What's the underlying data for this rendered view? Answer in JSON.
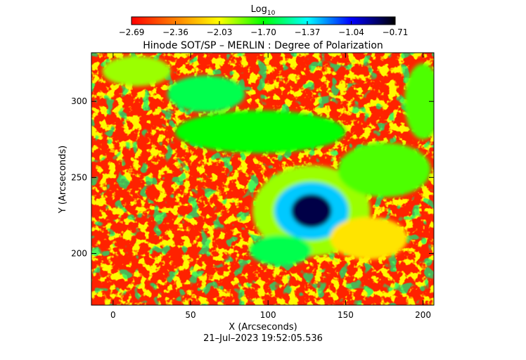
{
  "chart_data": {
    "type": "heatmap",
    "title": "Hinode SOT/SP – MERLIN : Degree of Polarization",
    "xlabel": "X (Arcseconds)",
    "ylabel": "Y (Arcseconds)",
    "timestamp": "21–Jul–2023 19:52:05.536",
    "xlim": [
      -14,
      207
    ],
    "ylim": [
      166,
      332
    ],
    "x_ticks": [
      0,
      50,
      100,
      150,
      200
    ],
    "x_tick_labels": [
      "0",
      "50",
      "100",
      "150",
      "200"
    ],
    "y_ticks": [
      200,
      250,
      300
    ],
    "y_tick_labels": [
      "200",
      "250",
      "300"
    ],
    "colorbar": {
      "label_base": "Log",
      "label_sub": "10",
      "range": [
        -2.69,
        -0.71
      ],
      "ticks": [
        -2.69,
        -2.36,
        -2.03,
        -1.7,
        -1.37,
        -1.04,
        -0.71
      ],
      "tick_labels": [
        "−2.69",
        "−2.36",
        "−2.03",
        "−1.70",
        "−1.37",
        "−1.04",
        "−0.71"
      ],
      "colormap": [
        "#ff0000",
        "#ff8000",
        "#ffff00",
        "#00ff00",
        "#00ffff",
        "#0000ff",
        "#000000"
      ]
    },
    "features": [
      {
        "x": 128,
        "y": 228,
        "rx": 13,
        "ry": 11,
        "value": -0.8
      },
      {
        "x": 128,
        "y": 228,
        "rx": 24,
        "ry": 19,
        "value": -1.3
      },
      {
        "x": 128,
        "y": 228,
        "rx": 38,
        "ry": 30,
        "value": -1.9
      },
      {
        "x": 95,
        "y": 280,
        "rx": 55,
        "ry": 14,
        "value": -1.7
      },
      {
        "x": 60,
        "y": 305,
        "rx": 25,
        "ry": 12,
        "value": -1.6
      },
      {
        "x": 175,
        "y": 255,
        "rx": 30,
        "ry": 18,
        "value": -1.8
      },
      {
        "x": 15,
        "y": 320,
        "rx": 22,
        "ry": 10,
        "value": -1.9
      },
      {
        "x": 108,
        "y": 202,
        "rx": 20,
        "ry": 10,
        "value": -1.6
      },
      {
        "x": 165,
        "y": 210,
        "rx": 25,
        "ry": 14,
        "value": -2.1
      },
      {
        "x": 200,
        "y": 300,
        "rx": 12,
        "ry": 25,
        "value": -1.8
      }
    ]
  }
}
